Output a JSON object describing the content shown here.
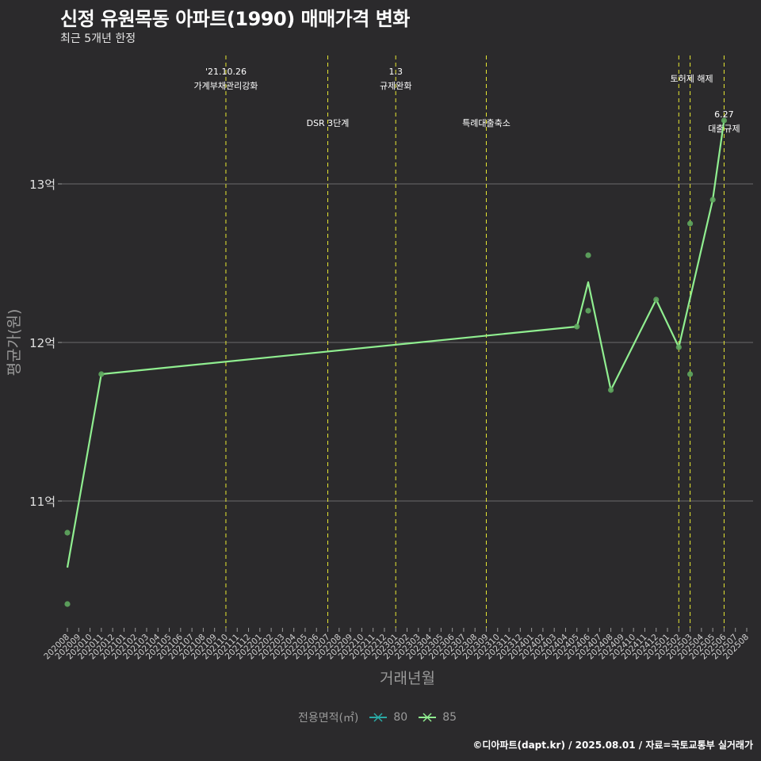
{
  "header": {
    "title": "신정 유원목동 아파트(1990) 매매가격 변화",
    "subtitle": "최근 5개년 한정"
  },
  "caption": "©디아파트(dapt.kr) / 2025.08.01 / 자료=국토교통부 실거래가",
  "legend": {
    "title": "전용면적(㎡)",
    "items": [
      {
        "label": "80",
        "color": "#2aa9a5"
      },
      {
        "label": "85",
        "color": "#90ee90"
      }
    ]
  },
  "chart_data": {
    "type": "line",
    "title": "신정 유원목동 아파트(1990) 매매가격 변화",
    "xlabel": "거래년월",
    "ylabel": "평균가(원)",
    "y_unit": "억",
    "ylim": [
      10.2,
      13.9
    ],
    "yticks": [
      11,
      12,
      13
    ],
    "ytick_labels": [
      "11억",
      "12억",
      "13억"
    ],
    "categories": [
      "202008",
      "202009",
      "202010",
      "202011",
      "202012",
      "202101",
      "202102",
      "202103",
      "202104",
      "202105",
      "202106",
      "202107",
      "202108",
      "202109",
      "202110",
      "202111",
      "202112",
      "202201",
      "202202",
      "202203",
      "202204",
      "202205",
      "202206",
      "202207",
      "202208",
      "202209",
      "202210",
      "202211",
      "202212",
      "202301",
      "202302",
      "202303",
      "202304",
      "202305",
      "202306",
      "202307",
      "202308",
      "202309",
      "202310",
      "202311",
      "202312",
      "202401",
      "202402",
      "202403",
      "202404",
      "202405",
      "202406",
      "202407",
      "202408",
      "202409",
      "202410",
      "202411",
      "202412",
      "202501",
      "202502",
      "202503",
      "202504",
      "202505",
      "202506",
      "202507",
      "202508"
    ],
    "series": [
      {
        "name": "85",
        "color": "#90ee90",
        "line": [
          {
            "x": "202008",
            "y": 10.58
          },
          {
            "x": "202011",
            "y": 11.8
          },
          {
            "x": "202405",
            "y": 12.1
          },
          {
            "x": "202406",
            "y": 12.38
          },
          {
            "x": "202408",
            "y": 11.7
          },
          {
            "x": "202412",
            "y": 12.27
          },
          {
            "x": "202502",
            "y": 11.97
          },
          {
            "x": "202505",
            "y": 12.9
          },
          {
            "x": "202506",
            "y": 13.4
          }
        ],
        "points": [
          {
            "x": "202008",
            "y": 10.8
          },
          {
            "x": "202008",
            "y": 10.35
          },
          {
            "x": "202011",
            "y": 11.8
          },
          {
            "x": "202405",
            "y": 12.1
          },
          {
            "x": "202406",
            "y": 12.55
          },
          {
            "x": "202406",
            "y": 12.2
          },
          {
            "x": "202408",
            "y": 11.7
          },
          {
            "x": "202412",
            "y": 12.27
          },
          {
            "x": "202502",
            "y": 11.97
          },
          {
            "x": "202503",
            "y": 12.75
          },
          {
            "x": "202503",
            "y": 11.8
          },
          {
            "x": "202505",
            "y": 12.9
          },
          {
            "x": "202506",
            "y": 13.4
          }
        ]
      }
    ],
    "annotations": [
      {
        "x": "202110",
        "lines": [
          "'21.10.26",
          "가계부채관리강화"
        ],
        "row": 1
      },
      {
        "x": "202207",
        "lines": [
          "DSR 3단계"
        ],
        "row": 2
      },
      {
        "x": "202301",
        "lines": [
          "1.3",
          "규제완화"
        ],
        "row": 1
      },
      {
        "x": "202309",
        "lines": [
          "특례대출축소"
        ],
        "row": 2
      },
      {
        "x": "202502",
        "lines": [],
        "row": 0
      },
      {
        "x": "202503",
        "lines": [
          "토허제 해제"
        ],
        "row": 1
      },
      {
        "x": "202506",
        "lines": [
          "6.27",
          "대출규제"
        ],
        "row": 3
      }
    ]
  }
}
